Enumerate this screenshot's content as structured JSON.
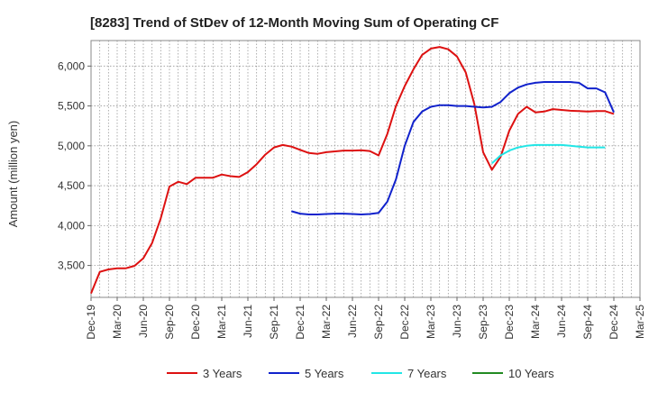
{
  "chart_data": {
    "type": "line",
    "title": "[8283]  Trend of StDev of 12-Month Moving Sum of Operating CF",
    "xlabel": "",
    "ylabel": "Amount (million yen)",
    "ylim": [
      3100,
      6320
    ],
    "yticks": [
      3500,
      4000,
      4500,
      5000,
      5500,
      6000
    ],
    "ytick_labels": [
      "3,500",
      "4,000",
      "4,500",
      "5,000",
      "5,500",
      "6,000"
    ],
    "x_start": "Dec-19",
    "x_end": "Mar-25",
    "xtick_labels": [
      "Dec-19",
      "Mar-20",
      "Jun-20",
      "Sep-20",
      "Dec-20",
      "Mar-21",
      "Jun-21",
      "Sep-21",
      "Dec-21",
      "Mar-22",
      "Jun-22",
      "Sep-22",
      "Dec-22",
      "Mar-23",
      "Jun-23",
      "Sep-23",
      "Dec-23",
      "Mar-24",
      "Jun-24",
      "Sep-24",
      "Dec-24",
      "Mar-25"
    ],
    "grid": true,
    "legend_position": "bottom",
    "series": [
      {
        "name": "3 Years",
        "color": "#dd1111",
        "start": "Dec-19",
        "values": [
          3150,
          3420,
          3450,
          3465,
          3465,
          3495,
          3590,
          3780,
          4090,
          4490,
          4550,
          4520,
          4600,
          4600,
          4600,
          4640,
          4620,
          4610,
          4670,
          4770,
          4890,
          4980,
          5010,
          4990,
          4950,
          4910,
          4900,
          4920,
          4930,
          4940,
          4940,
          4945,
          4935,
          4880,
          5150,
          5500,
          5750,
          5960,
          6140,
          6220,
          6240,
          6210,
          6120,
          5920,
          5520,
          4920,
          4700,
          4860,
          5190,
          5400,
          5490,
          5420,
          5430,
          5460,
          5450,
          5440,
          5435,
          5430,
          5435,
          5435,
          5400
        ]
      },
      {
        "name": "5 Years",
        "color": "#1122cc",
        "start": "Nov-21",
        "values": [
          4180,
          4150,
          4140,
          4140,
          4145,
          4150,
          4150,
          4145,
          4140,
          4145,
          4160,
          4300,
          4580,
          5000,
          5300,
          5430,
          5490,
          5510,
          5510,
          5500,
          5500,
          5490,
          5480,
          5490,
          5550,
          5660,
          5730,
          5770,
          5790,
          5800,
          5800,
          5800,
          5800,
          5790,
          5720,
          5720,
          5670,
          5420
        ]
      },
      {
        "name": "7 Years",
        "color": "#22e6e6",
        "start": "Oct-23",
        "values": [
          4780,
          4880,
          4940,
          4980,
          5000,
          5010,
          5010,
          5010,
          5010,
          5000,
          4990,
          4980,
          4980,
          4980
        ]
      },
      {
        "name": "10 Years",
        "color": "#228b22",
        "start": "",
        "values": []
      }
    ]
  }
}
